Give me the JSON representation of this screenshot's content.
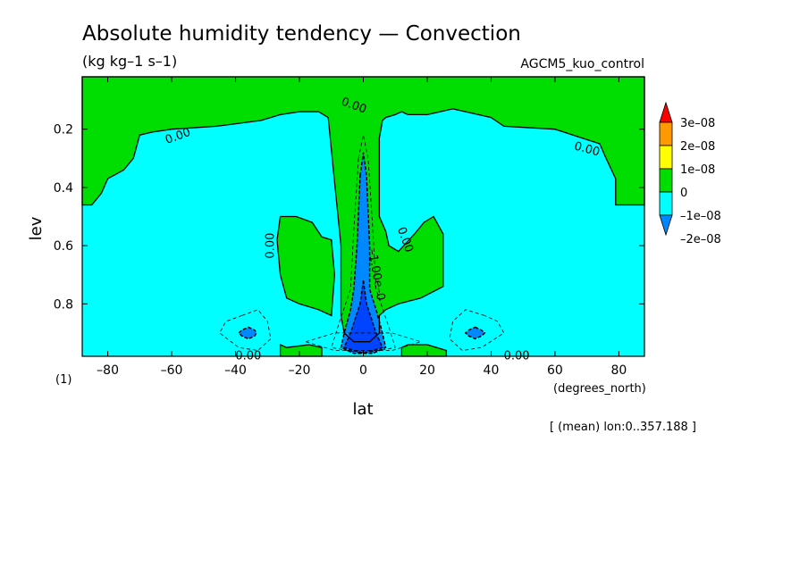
{
  "chart_data": {
    "type": "contour",
    "title": "Absolute humidity tendency — Convection",
    "units": "(kg kg–1 s–1)",
    "dataset": "AGCM5_kuo_control",
    "xlabel": "lat",
    "x_units": "(degrees_north)",
    "ylabel": "lev",
    "y_units": "(1)",
    "xlim": [
      -88,
      88
    ],
    "ylim": [
      0.98,
      0.02
    ],
    "x_ticks": [
      -80,
      -60,
      -40,
      -20,
      0,
      20,
      40,
      60,
      80
    ],
    "x_tick_labels": [
      "–80",
      "–60",
      "–40",
      "–20",
      "0",
      "20",
      "40",
      "60",
      "80"
    ],
    "y_ticks": [
      0.2,
      0.4,
      0.6,
      0.8
    ],
    "y_tick_labels": [
      "0.2",
      "0.4",
      "0.6",
      "0.8"
    ],
    "note": "[ (mean) lon:0..357.188 ]",
    "colorbar": {
      "levels": [
        "3e–08",
        "2e–08",
        "1e–08",
        "0",
        "–1e–08",
        "–2e–08"
      ],
      "colors": [
        "#ff0000",
        "#ff9900",
        "#ffff00",
        "#00dd00",
        "#00ffff",
        "#0088ff"
      ]
    },
    "fill_colors": {
      "above_zero": "#00dd00",
      "zero_to_minus1": "#00ffff",
      "minus1_to_minus2": "#0088ff",
      "below_minus2": "#0044ff"
    },
    "contour_labels": [
      "0.00",
      "0.00",
      "0.00",
      "0.00",
      "0.00",
      "0.00",
      "0.00",
      "–1.00e–0"
    ],
    "regions": {
      "green_top": [
        [
          -88,
          0.02
        ],
        [
          88,
          0.02
        ],
        [
          88,
          0.46
        ],
        [
          86,
          0.46
        ],
        [
          79,
          0.46
        ],
        [
          79,
          0.37
        ],
        [
          76,
          0.3
        ],
        [
          74,
          0.25
        ],
        [
          60,
          0.2
        ],
        [
          44,
          0.19
        ],
        [
          40,
          0.16
        ],
        [
          32,
          0.14
        ],
        [
          28,
          0.13
        ],
        [
          20,
          0.15
        ],
        [
          14,
          0.15
        ],
        [
          12,
          0.14
        ],
        [
          10,
          0.15
        ],
        [
          7,
          0.16
        ],
        [
          6,
          0.17
        ],
        [
          5,
          0.23
        ],
        [
          5,
          0.5
        ],
        [
          7,
          0.55
        ],
        [
          8,
          0.6
        ],
        [
          11,
          0.62
        ],
        [
          16,
          0.56
        ],
        [
          19,
          0.52
        ],
        [
          22,
          0.5
        ],
        [
          25,
          0.56
        ],
        [
          25,
          0.74
        ],
        [
          18,
          0.78
        ],
        [
          11,
          0.8
        ],
        [
          7,
          0.82
        ],
        [
          5,
          0.84
        ],
        [
          5,
          0.9
        ],
        [
          2,
          0.93
        ],
        [
          -3,
          0.93
        ],
        [
          -6,
          0.9
        ],
        [
          -7,
          0.84
        ],
        [
          -7,
          0.6
        ],
        [
          -9,
          0.38
        ],
        [
          -11,
          0.16
        ],
        [
          -14,
          0.14
        ],
        [
          -17,
          0.14
        ],
        [
          -20,
          0.14
        ],
        [
          -26,
          0.15
        ],
        [
          -32,
          0.17
        ],
        [
          -46,
          0.19
        ],
        [
          -60,
          0.2
        ],
        [
          -66,
          0.21
        ],
        [
          -70,
          0.22
        ],
        [
          -72,
          0.3
        ],
        [
          -75,
          0.34
        ],
        [
          -80,
          0.37
        ],
        [
          -82,
          0.42
        ],
        [
          -85,
          0.46
        ],
        [
          -88,
          0.46
        ]
      ],
      "green_mid_left": [
        [
          -13,
          0.57
        ],
        [
          -16,
          0.52
        ],
        [
          -21,
          0.5
        ],
        [
          -26,
          0.5
        ],
        [
          -27,
          0.58
        ],
        [
          -26,
          0.7
        ],
        [
          -24,
          0.78
        ],
        [
          -20,
          0.8
        ],
        [
          -14,
          0.82
        ],
        [
          -10,
          0.84
        ],
        [
          -9,
          0.7
        ],
        [
          -10,
          0.58
        ]
      ],
      "green_bottom_left": [
        [
          -26,
          0.94
        ],
        [
          -24,
          0.95
        ],
        [
          -17,
          0.94
        ],
        [
          -13,
          0.95
        ],
        [
          -13,
          0.98
        ],
        [
          -26,
          0.98
        ]
      ],
      "green_bottom_right": [
        [
          12,
          0.95
        ],
        [
          14,
          0.94
        ],
        [
          20,
          0.94
        ],
        [
          26,
          0.96
        ],
        [
          26,
          0.98
        ],
        [
          12,
          0.98
        ]
      ],
      "blue_core": [
        [
          -1,
          0.36
        ],
        [
          0,
          0.28
        ],
        [
          1,
          0.36
        ],
        [
          2,
          0.6
        ],
        [
          2,
          0.75
        ],
        [
          4,
          0.82
        ],
        [
          6,
          0.9
        ],
        [
          7,
          0.95
        ],
        [
          3,
          0.97
        ],
        [
          -3,
          0.97
        ],
        [
          -7,
          0.95
        ],
        [
          -6,
          0.9
        ],
        [
          -4,
          0.82
        ],
        [
          -3,
          0.75
        ],
        [
          -2,
          0.6
        ]
      ],
      "deep_blue_core": [
        [
          0,
          0.72
        ],
        [
          1,
          0.8
        ],
        [
          4,
          0.9
        ],
        [
          6,
          0.95
        ],
        [
          0,
          0.97
        ],
        [
          -6,
          0.95
        ],
        [
          -4,
          0.9
        ],
        [
          -1,
          0.8
        ]
      ],
      "blue_blob_left": [
        [
          -36,
          0.88
        ],
        [
          -34,
          0.89
        ],
        [
          -33.5,
          0.9
        ],
        [
          -34,
          0.91
        ],
        [
          -36,
          0.92
        ],
        [
          -38,
          0.91
        ],
        [
          -39,
          0.9
        ],
        [
          -38,
          0.89
        ]
      ],
      "blue_blob_right": [
        [
          35,
          0.88
        ],
        [
          37,
          0.89
        ],
        [
          38,
          0.9
        ],
        [
          37,
          0.91
        ],
        [
          35,
          0.92
        ],
        [
          33,
          0.91
        ],
        [
          32,
          0.9
        ],
        [
          33,
          0.89
        ]
      ]
    }
  }
}
